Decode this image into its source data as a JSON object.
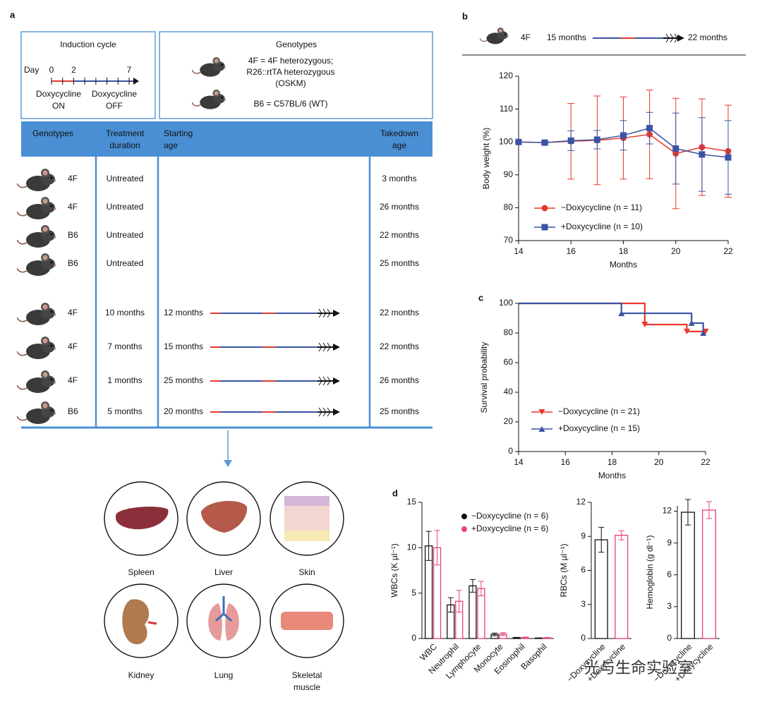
{
  "panel_labels": [
    "a",
    "b",
    "c",
    "d"
  ],
  "panel_a": {
    "induction": {
      "title": "Induction cycle",
      "day_label": "Day",
      "ticks": [
        0,
        2,
        7
      ],
      "on": [
        "Doxycycline",
        "ON"
      ],
      "off": [
        "Doxycycline",
        "OFF"
      ]
    },
    "genotypes": {
      "title": "Genotypes",
      "lines": [
        "4F = 4F heterozygous;",
        "R26::rtTA heterozygous",
        "(OSKM)",
        "B6 = C57BL/6 (WT)"
      ]
    },
    "table": {
      "headers": [
        [
          "Genotypes"
        ],
        [
          "Treatment",
          "duration"
        ],
        [
          "Starting",
          "age"
        ],
        [
          "Takedown",
          "age"
        ]
      ],
      "rows": [
        {
          "genotype": "4F",
          "treatment": "Untreated",
          "takedown": "3 months"
        },
        {
          "genotype": "4F",
          "treatment": "Untreated",
          "takedown": "26 months"
        },
        {
          "genotype": "B6",
          "treatment": "Untreated",
          "takedown": "22 months"
        },
        {
          "genotype": "B6",
          "treatment": "Untreated",
          "takedown": "25 months"
        },
        {
          "genotype": "4F",
          "treatment": "10 months",
          "start": "12 months",
          "takedown": "22 months"
        },
        {
          "genotype": "4F",
          "treatment": "7 months",
          "start": "15 months",
          "takedown": "22 months"
        },
        {
          "genotype": "4F",
          "treatment": "1 months",
          "start": "25 months",
          "takedown": "26 months"
        },
        {
          "genotype": "B6",
          "treatment": "5 months",
          "start": "20 months",
          "takedown": "25 months"
        }
      ]
    },
    "organs": [
      [
        "Spleen"
      ],
      [
        "Liver"
      ],
      [
        "Skin"
      ],
      [
        "Kidney"
      ],
      [
        "Lung"
      ],
      [
        "Skeletal",
        "muscle"
      ]
    ]
  },
  "panel_b_header": {
    "genotype": "4F",
    "from": "15 months",
    "to": "22 months"
  },
  "chart_data": [
    {
      "type": "line",
      "xlabel": "Months",
      "ylabel": "Body weight (%)",
      "xlim": [
        14,
        22
      ],
      "xticks": [
        14,
        16,
        18,
        20,
        22
      ],
      "ylim": [
        70,
        120
      ],
      "yticks": [
        70,
        80,
        90,
        100,
        110,
        120
      ],
      "x": [
        14,
        15,
        16,
        17,
        18,
        19,
        20,
        21,
        22
      ],
      "series": [
        {
          "name": "−Doxycycline (n = 11)",
          "color": "#e8392d",
          "marker": "circle",
          "values": [
            100,
            99.8,
            100.2,
            100.5,
            101.2,
            102.3,
            96.5,
            98.4,
            97.2
          ],
          "errors": [
            0,
            0.5,
            11.5,
            13.5,
            12.5,
            13.5,
            16.8,
            14.7,
            14
          ]
        },
        {
          "name": "+Doxycycline (n = 10)",
          "color": "#3a53a4",
          "marker": "square",
          "values": [
            100,
            99.8,
            100.4,
            100.7,
            102,
            104.2,
            98,
            96.2,
            95.3
          ],
          "errors": [
            0,
            0.4,
            3,
            2.8,
            4.5,
            4.8,
            10.8,
            11.2,
            11.2
          ]
        }
      ]
    },
    {
      "type": "step",
      "xlabel": "Months",
      "ylabel": "Survival probability",
      "xlim": [
        14,
        22
      ],
      "xticks": [
        14,
        16,
        18,
        20,
        22
      ],
      "ylim": [
        0,
        100
      ],
      "yticks": [
        0,
        20,
        40,
        60,
        80,
        100
      ],
      "series": [
        {
          "name": "−Doxycycline (n = 21)",
          "color": "#e8392d",
          "marker": "tri-down",
          "x": [
            14,
            19.4,
            21.2,
            22
          ],
          "values": [
            100,
            85.7,
            81,
            81
          ]
        },
        {
          "name": "+Doxycycline (n = 15)",
          "color": "#3a53a4",
          "marker": "tri-up",
          "x": [
            14,
            18.4,
            21.4,
            21.9
          ],
          "values": [
            100,
            93.3,
            86.7,
            80
          ]
        }
      ]
    },
    {
      "type": "bar",
      "ylabel": "WBCs (K µl⁻¹)",
      "ylim": [
        0,
        15
      ],
      "yticks": [
        0,
        5,
        10,
        15
      ],
      "categories": [
        "WBC",
        "Neutrophil",
        "Lymphocyte",
        "Monocyte",
        "Eosinophil",
        "Basophil"
      ],
      "series": [
        {
          "name": "−Doxycycline (n = 6)",
          "color": "#111111",
          "values": [
            10.2,
            3.7,
            5.8,
            0.45,
            0.1,
            0.05
          ],
          "errors": [
            1.6,
            0.8,
            0.7,
            0.15,
            0.03,
            0.02
          ]
        },
        {
          "name": "+Doxycycline (n = 6)",
          "color": "#e8407a",
          "values": [
            10,
            4.1,
            5.5,
            0.5,
            0.12,
            0.08
          ],
          "errors": [
            1.9,
            1.2,
            0.8,
            0.15,
            0.04,
            0.03
          ]
        }
      ]
    },
    {
      "type": "bar",
      "ylabel": "RBCs (M µl⁻¹)",
      "ylim": [
        0,
        12
      ],
      "yticks": [
        0,
        3,
        6,
        9,
        12
      ],
      "categories": [
        "−Doxycycline",
        "+Doxycycline"
      ],
      "colors": [
        "#111111",
        "#e8407a"
      ],
      "values": [
        8.7,
        9.1
      ],
      "errors": [
        1.1,
        0.4
      ]
    },
    {
      "type": "bar",
      "ylabel": "Hemoglobin (g dl⁻¹)",
      "ylim": [
        0,
        12.5
      ],
      "yticks": [
        0,
        3,
        6,
        9,
        12
      ],
      "categories": [
        "−Doxycycline",
        "+Doxycycline"
      ],
      "colors": [
        "#111111",
        "#e8407a"
      ],
      "values": [
        11.9,
        12.1
      ],
      "errors": [
        1.2,
        0.8
      ]
    }
  ],
  "watermark": "光与生命实验室"
}
